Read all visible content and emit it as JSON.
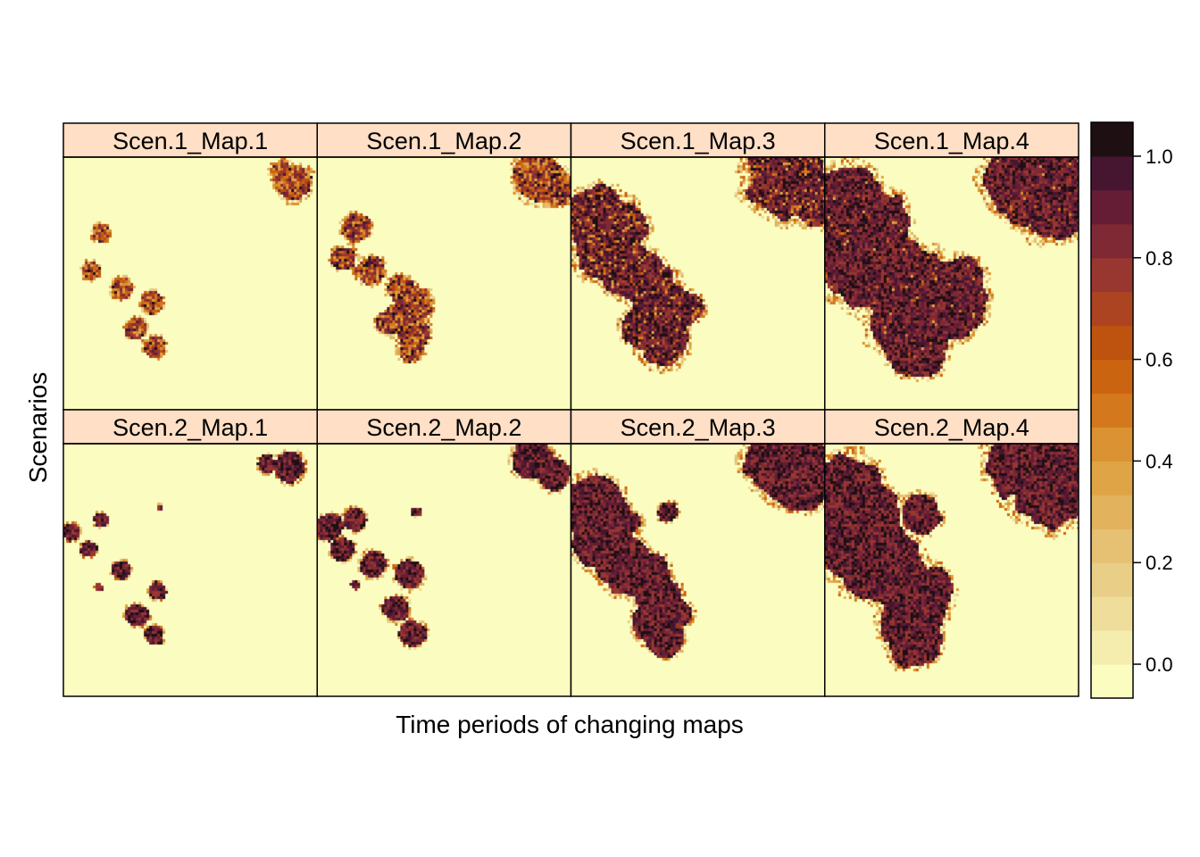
{
  "chart_data": {
    "type": "heatmap",
    "title": "",
    "xlabel": "Time periods of changing maps",
    "ylabel": "Scenarios",
    "layout": {
      "columns": 4,
      "rows": 2
    },
    "panels": [
      {
        "label": "Scen.1_Map.1",
        "row": 1,
        "col": 1,
        "spread": 0.35,
        "hot_share": 0.15,
        "patches": [
          {
            "x": 0.91,
            "y": 0.9,
            "r": 0.055
          },
          {
            "x": 0.86,
            "y": 0.94,
            "r": 0.035
          },
          {
            "x": 0.15,
            "y": 0.7,
            "r": 0.03
          },
          {
            "x": 0.11,
            "y": 0.55,
            "r": 0.03
          },
          {
            "x": 0.23,
            "y": 0.48,
            "r": 0.035
          },
          {
            "x": 0.35,
            "y": 0.42,
            "r": 0.035
          },
          {
            "x": 0.29,
            "y": 0.32,
            "r": 0.035
          },
          {
            "x": 0.36,
            "y": 0.25,
            "r": 0.035
          }
        ]
      },
      {
        "label": "Scen.1_Map.2",
        "row": 1,
        "col": 2,
        "spread": 0.55,
        "hot_share": 0.35,
        "patches": [
          {
            "x": 0.87,
            "y": 0.92,
            "r": 0.07
          },
          {
            "x": 0.95,
            "y": 0.87,
            "r": 0.045
          },
          {
            "x": 0.15,
            "y": 0.72,
            "r": 0.04
          },
          {
            "x": 0.11,
            "y": 0.6,
            "r": 0.035
          },
          {
            "x": 0.21,
            "y": 0.55,
            "r": 0.04
          },
          {
            "x": 0.33,
            "y": 0.48,
            "r": 0.04
          },
          {
            "x": 0.38,
            "y": 0.42,
            "r": 0.05
          },
          {
            "x": 0.29,
            "y": 0.35,
            "r": 0.04
          },
          {
            "x": 0.38,
            "y": 0.3,
            "r": 0.045
          },
          {
            "x": 0.37,
            "y": 0.24,
            "r": 0.035
          }
        ]
      },
      {
        "label": "Scen.1_Map.3",
        "row": 1,
        "col": 3,
        "spread": 0.85,
        "hot_share": 0.8,
        "patches": [
          {
            "x": 0.85,
            "y": 0.92,
            "r": 0.1
          },
          {
            "x": 0.95,
            "y": 0.85,
            "r": 0.07
          },
          {
            "x": 0.1,
            "y": 0.75,
            "r": 0.08
          },
          {
            "x": 0.2,
            "y": 0.73,
            "r": 0.06
          },
          {
            "x": 0.13,
            "y": 0.62,
            "r": 0.07
          },
          {
            "x": 0.23,
            "y": 0.55,
            "r": 0.07
          },
          {
            "x": 0.3,
            "y": 0.5,
            "r": 0.06
          },
          {
            "x": 0.35,
            "y": 0.42,
            "r": 0.07
          },
          {
            "x": 0.3,
            "y": 0.33,
            "r": 0.06
          },
          {
            "x": 0.37,
            "y": 0.27,
            "r": 0.06
          },
          {
            "x": 0.46,
            "y": 0.4,
            "r": 0.04
          }
        ]
      },
      {
        "label": "Scen.1_Map.4",
        "row": 1,
        "col": 4,
        "spread": 1,
        "hot_share": 0.95,
        "patches": [
          {
            "x": 0.8,
            "y": 0.92,
            "r": 0.1
          },
          {
            "x": 0.92,
            "y": 0.87,
            "r": 0.11
          },
          {
            "x": 0.08,
            "y": 0.78,
            "r": 0.1
          },
          {
            "x": 0.18,
            "y": 0.72,
            "r": 0.09
          },
          {
            "x": 0.1,
            "y": 0.62,
            "r": 0.1
          },
          {
            "x": 0.22,
            "y": 0.55,
            "r": 0.1
          },
          {
            "x": 0.32,
            "y": 0.48,
            "r": 0.1
          },
          {
            "x": 0.42,
            "y": 0.42,
            "r": 0.09
          },
          {
            "x": 0.5,
            "y": 0.42,
            "r": 0.08
          },
          {
            "x": 0.32,
            "y": 0.33,
            "r": 0.08
          },
          {
            "x": 0.36,
            "y": 0.25,
            "r": 0.07
          },
          {
            "x": 0.53,
            "y": 0.5,
            "r": 0.06
          }
        ]
      },
      {
        "label": "Scen.2_Map.1",
        "row": 2,
        "col": 1,
        "spread": 0.3,
        "hot_share": 1,
        "patches": [
          {
            "x": 0.89,
            "y": 0.91,
            "r": 0.05
          },
          {
            "x": 0.8,
            "y": 0.92,
            "r": 0.03
          },
          {
            "x": 0.03,
            "y": 0.65,
            "r": 0.03
          },
          {
            "x": 0.15,
            "y": 0.7,
            "r": 0.025
          },
          {
            "x": 0.1,
            "y": 0.58,
            "r": 0.025
          },
          {
            "x": 0.23,
            "y": 0.5,
            "r": 0.03
          },
          {
            "x": 0.37,
            "y": 0.42,
            "r": 0.03
          },
          {
            "x": 0.29,
            "y": 0.32,
            "r": 0.035
          },
          {
            "x": 0.36,
            "y": 0.24,
            "r": 0.03
          },
          {
            "x": 0.38,
            "y": 0.75,
            "r": 0.01
          },
          {
            "x": 0.14,
            "y": 0.43,
            "r": 0.012
          }
        ]
      },
      {
        "label": "Scen.2_Map.2",
        "row": 2,
        "col": 2,
        "spread": 0.45,
        "hot_share": 1,
        "patches": [
          {
            "x": 0.85,
            "y": 0.94,
            "r": 0.06
          },
          {
            "x": 0.93,
            "y": 0.88,
            "r": 0.05
          },
          {
            "x": 0.05,
            "y": 0.67,
            "r": 0.04
          },
          {
            "x": 0.15,
            "y": 0.7,
            "r": 0.035
          },
          {
            "x": 0.1,
            "y": 0.58,
            "r": 0.035
          },
          {
            "x": 0.22,
            "y": 0.52,
            "r": 0.04
          },
          {
            "x": 0.36,
            "y": 0.48,
            "r": 0.045
          },
          {
            "x": 0.31,
            "y": 0.35,
            "r": 0.04
          },
          {
            "x": 0.38,
            "y": 0.25,
            "r": 0.04
          },
          {
            "x": 0.39,
            "y": 0.73,
            "r": 0.015
          },
          {
            "x": 0.15,
            "y": 0.44,
            "r": 0.015
          }
        ]
      },
      {
        "label": "Scen.2_Map.3",
        "row": 2,
        "col": 3,
        "spread": 0.8,
        "hot_share": 1,
        "patches": [
          {
            "x": 0.85,
            "y": 0.93,
            "r": 0.1
          },
          {
            "x": 0.92,
            "y": 0.85,
            "r": 0.07
          },
          {
            "x": 0.08,
            "y": 0.75,
            "r": 0.08
          },
          {
            "x": 0.17,
            "y": 0.68,
            "r": 0.06
          },
          {
            "x": 0.1,
            "y": 0.6,
            "r": 0.06
          },
          {
            "x": 0.2,
            "y": 0.53,
            "r": 0.07
          },
          {
            "x": 0.3,
            "y": 0.47,
            "r": 0.06
          },
          {
            "x": 0.35,
            "y": 0.38,
            "r": 0.06
          },
          {
            "x": 0.33,
            "y": 0.3,
            "r": 0.055
          },
          {
            "x": 0.37,
            "y": 0.24,
            "r": 0.05
          },
          {
            "x": 0.41,
            "y": 0.33,
            "r": 0.04
          },
          {
            "x": 0.38,
            "y": 0.73,
            "r": 0.025
          }
        ]
      },
      {
        "label": "Scen.2_Map.4",
        "row": 2,
        "col": 4,
        "spread": 1,
        "hot_share": 1,
        "patches": [
          {
            "x": 0.82,
            "y": 0.93,
            "r": 0.1
          },
          {
            "x": 0.92,
            "y": 0.86,
            "r": 0.11
          },
          {
            "x": 0.07,
            "y": 0.78,
            "r": 0.1
          },
          {
            "x": 0.16,
            "y": 0.72,
            "r": 0.08
          },
          {
            "x": 0.09,
            "y": 0.62,
            "r": 0.09
          },
          {
            "x": 0.19,
            "y": 0.55,
            "r": 0.09
          },
          {
            "x": 0.28,
            "y": 0.48,
            "r": 0.08
          },
          {
            "x": 0.35,
            "y": 0.4,
            "r": 0.08
          },
          {
            "x": 0.42,
            "y": 0.42,
            "r": 0.05
          },
          {
            "x": 0.33,
            "y": 0.3,
            "r": 0.07
          },
          {
            "x": 0.35,
            "y": 0.22,
            "r": 0.06
          },
          {
            "x": 0.38,
            "y": 0.72,
            "r": 0.045
          }
        ]
      }
    ],
    "colorbar": {
      "ticks": [
        0.0,
        0.2,
        0.4,
        0.6,
        0.8,
        1.0
      ],
      "tick_labels": [
        "0.0",
        "0.2",
        "0.4",
        "0.6",
        "0.8",
        "1.0"
      ],
      "range": [
        -0.0667,
        1.0667
      ],
      "levels": 17,
      "palette": [
        "#fbfdc0",
        "#f5edae",
        "#efde9b",
        "#e9ce88",
        "#e6c073",
        "#e2b25d",
        "#dfa446",
        "#da9232",
        "#d4781d",
        "#cb6410",
        "#be520f",
        "#ad4421",
        "#983630",
        "#7f2934",
        "#641d35",
        "#461630",
        "#1e0f13"
      ]
    },
    "grid": false,
    "legend": "right"
  }
}
